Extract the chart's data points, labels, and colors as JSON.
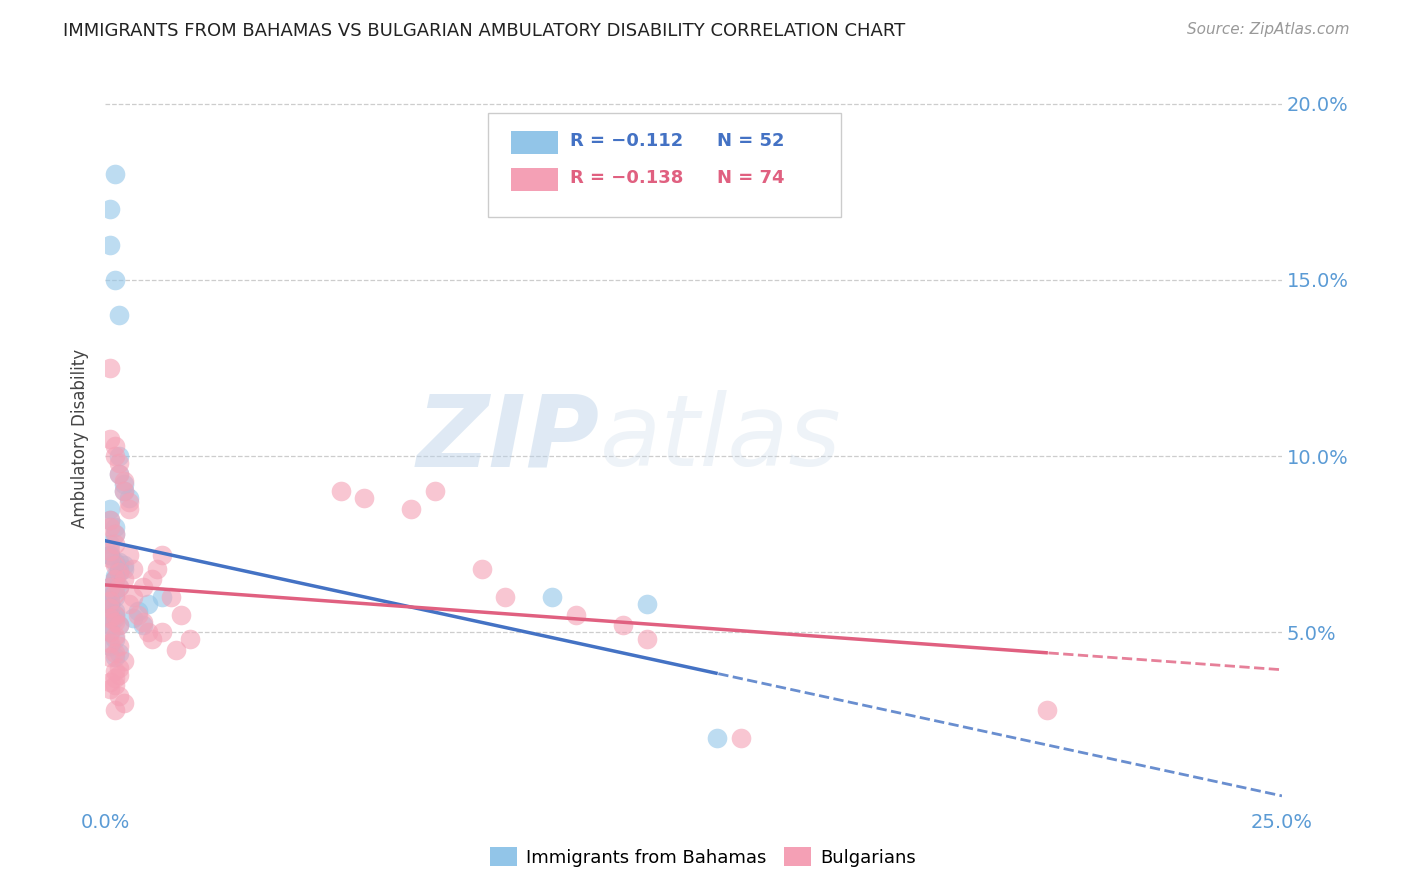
{
  "title": "IMMIGRANTS FROM BAHAMAS VS BULGARIAN AMBULATORY DISABILITY CORRELATION CHART",
  "source": "Source: ZipAtlas.com",
  "ylabel": "Ambulatory Disability",
  "xmin": 0.0,
  "xmax": 0.25,
  "ymin": 0.0,
  "ymax": 0.21,
  "yticks": [
    0.05,
    0.1,
    0.15,
    0.2
  ],
  "ytick_labels": [
    "5.0%",
    "10.0%",
    "15.0%",
    "20.0%"
  ],
  "xticks": [
    0.0,
    0.05,
    0.1,
    0.15,
    0.2,
    0.25
  ],
  "xtick_labels": [
    "0.0%",
    "",
    "",
    "",
    "",
    "25.0%"
  ],
  "legend_r1": "R = −0.112",
  "legend_n1": "N = 52",
  "legend_r2": "R = −0.138",
  "legend_n2": "N = 74",
  "color_blue": "#92c5e8",
  "color_pink": "#f4a0b5",
  "color_blue_line": "#4472c4",
  "color_pink_line": "#e06080",
  "color_blue_text": "#4472c4",
  "color_pink_text": "#e06080",
  "color_axis_right": "#5b9bd5",
  "watermark_zip": "ZIP",
  "watermark_atlas": "atlas",
  "background_color": "#ffffff",
  "grid_color": "#c8c8c8",
  "bahamas_x": [
    0.001,
    0.001,
    0.002,
    0.002,
    0.003,
    0.003,
    0.003,
    0.004,
    0.004,
    0.005,
    0.001,
    0.001,
    0.002,
    0.002,
    0.001,
    0.001,
    0.002,
    0.003,
    0.002,
    0.001,
    0.002,
    0.001,
    0.001,
    0.002,
    0.001,
    0.002,
    0.003,
    0.001,
    0.002,
    0.001,
    0.003,
    0.002,
    0.001,
    0.004,
    0.003,
    0.002,
    0.003,
    0.002,
    0.001,
    0.002,
    0.001,
    0.003,
    0.004,
    0.002,
    0.012,
    0.009,
    0.007,
    0.006,
    0.008,
    0.095,
    0.115,
    0.13
  ],
  "bahamas_y": [
    0.17,
    0.16,
    0.18,
    0.15,
    0.14,
    0.1,
    0.095,
    0.092,
    0.09,
    0.088,
    0.085,
    0.082,
    0.08,
    0.078,
    0.075,
    0.072,
    0.07,
    0.068,
    0.065,
    0.063,
    0.062,
    0.06,
    0.058,
    0.056,
    0.055,
    0.054,
    0.052,
    0.05,
    0.048,
    0.046,
    0.044,
    0.043,
    0.072,
    0.069,
    0.067,
    0.065,
    0.063,
    0.06,
    0.058,
    0.055,
    0.052,
    0.07,
    0.068,
    0.066,
    0.06,
    0.058,
    0.056,
    0.054,
    0.052,
    0.06,
    0.058,
    0.02
  ],
  "bulgarian_x": [
    0.001,
    0.001,
    0.002,
    0.002,
    0.003,
    0.003,
    0.004,
    0.004,
    0.005,
    0.005,
    0.001,
    0.001,
    0.002,
    0.002,
    0.001,
    0.001,
    0.002,
    0.003,
    0.002,
    0.001,
    0.002,
    0.001,
    0.001,
    0.002,
    0.001,
    0.002,
    0.003,
    0.001,
    0.002,
    0.001,
    0.003,
    0.002,
    0.001,
    0.004,
    0.003,
    0.002,
    0.003,
    0.002,
    0.001,
    0.002,
    0.001,
    0.003,
    0.004,
    0.002,
    0.005,
    0.006,
    0.004,
    0.003,
    0.006,
    0.005,
    0.007,
    0.008,
    0.009,
    0.01,
    0.012,
    0.011,
    0.01,
    0.008,
    0.014,
    0.016,
    0.012,
    0.018,
    0.015,
    0.05,
    0.055,
    0.065,
    0.07,
    0.08,
    0.085,
    0.1,
    0.11,
    0.115,
    0.2,
    0.135
  ],
  "bulgarian_y": [
    0.125,
    0.105,
    0.103,
    0.1,
    0.098,
    0.095,
    0.093,
    0.09,
    0.087,
    0.085,
    0.082,
    0.08,
    0.078,
    0.075,
    0.073,
    0.071,
    0.069,
    0.067,
    0.065,
    0.063,
    0.061,
    0.059,
    0.057,
    0.055,
    0.054,
    0.053,
    0.052,
    0.05,
    0.049,
    0.047,
    0.046,
    0.044,
    0.043,
    0.042,
    0.04,
    0.039,
    0.038,
    0.037,
    0.036,
    0.035,
    0.034,
    0.032,
    0.03,
    0.028,
    0.072,
    0.068,
    0.065,
    0.063,
    0.06,
    0.058,
    0.055,
    0.053,
    0.05,
    0.048,
    0.072,
    0.068,
    0.065,
    0.063,
    0.06,
    0.055,
    0.05,
    0.048,
    0.045,
    0.09,
    0.088,
    0.085,
    0.09,
    0.068,
    0.06,
    0.055,
    0.052,
    0.048,
    0.028,
    0.02
  ]
}
